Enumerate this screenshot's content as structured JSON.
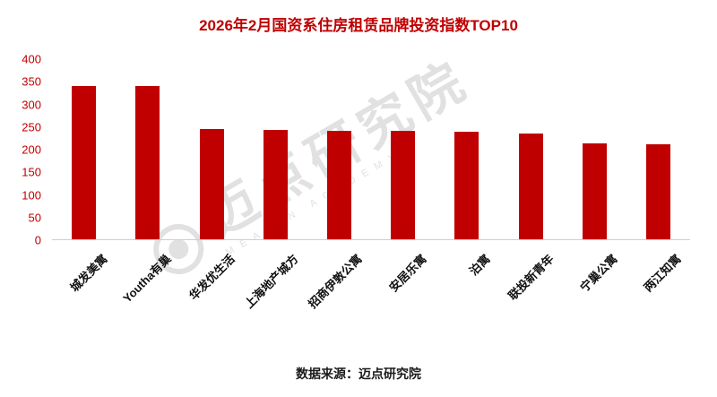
{
  "title": "2026年2月国资系住房租赁品牌投资指数TOP10",
  "source": "数据来源：迈点研究院",
  "watermark": {
    "text": "迈点研究院",
    "subtext": "MEADIN ACADEMY"
  },
  "colors": {
    "accent": "#c00000",
    "axis_line": "#cfcdcd",
    "tick_label": "#c00000",
    "category_label": "#111111"
  },
  "chart_data": {
    "type": "bar",
    "title": "2026年2月国资系住房租赁品牌投资指数TOP10",
    "categories": [
      "城发美寓",
      "Youtha有巢",
      "华发优生活",
      "上海地产城方",
      "招商伊敦公寓",
      "安居乐寓",
      "泊寓",
      "联投新青年",
      "宁巢公寓",
      "两江知寓"
    ],
    "values": [
      341,
      340,
      245,
      242,
      241,
      240,
      238,
      234,
      212,
      210
    ],
    "xlabel": "",
    "ylabel": "",
    "ylim": [
      0,
      400
    ],
    "ytick_step": 50,
    "bar_color": "#c00000",
    "grid": false,
    "legend": false,
    "x_label_rotation_deg": -45
  }
}
